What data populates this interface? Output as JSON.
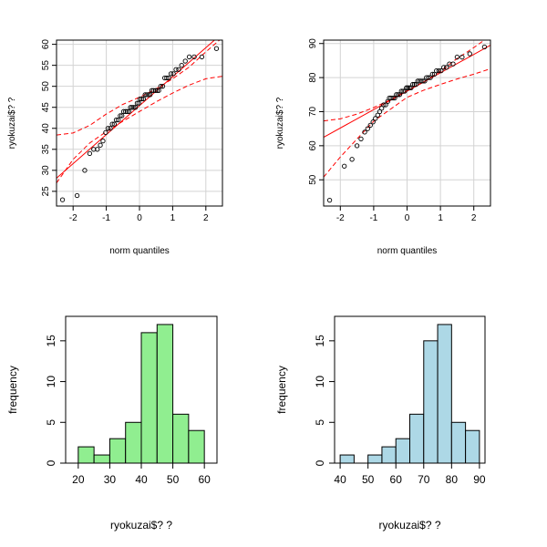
{
  "chart_data": [
    {
      "type": "scatter",
      "subtype": "qq-plot",
      "xlabel": "norm quantiles",
      "ylabel": "ryokuzai$? ?",
      "xlim": [
        -2.5,
        2.5
      ],
      "ylim": [
        21.5,
        61
      ],
      "xticks": [
        -2,
        -1,
        0,
        1,
        2
      ],
      "yticks": [
        25,
        30,
        35,
        40,
        45,
        50,
        55,
        60
      ],
      "grid": true,
      "points": {
        "x": [
          -2.32,
          -1.88,
          -1.65,
          -1.5,
          -1.38,
          -1.27,
          -1.18,
          -1.1,
          -1.02,
          -0.95,
          -0.88,
          -0.82,
          -0.76,
          -0.7,
          -0.64,
          -0.58,
          -0.53,
          -0.48,
          -0.42,
          -0.37,
          -0.32,
          -0.27,
          -0.22,
          -0.17,
          -0.12,
          -0.07,
          -0.02,
          0.02,
          0.07,
          0.12,
          0.17,
          0.22,
          0.27,
          0.32,
          0.37,
          0.42,
          0.48,
          0.53,
          0.58,
          0.64,
          0.7,
          0.76,
          0.82,
          0.88,
          0.95,
          1.02,
          1.1,
          1.18,
          1.27,
          1.38,
          1.5,
          1.65,
          1.88,
          2.32
        ],
        "y": [
          23,
          24,
          30,
          34,
          35,
          35,
          36,
          37,
          39,
          40,
          40,
          41,
          41,
          42,
          42,
          43,
          43,
          44,
          44,
          44,
          44,
          45,
          45,
          45,
          45,
          46,
          46,
          47,
          47,
          47,
          48,
          48,
          48,
          48,
          49,
          49,
          49,
          49,
          49,
          50,
          50,
          52,
          52,
          52,
          53,
          53,
          54,
          54,
          55,
          56,
          57,
          57,
          57,
          59
        ]
      },
      "reference_line": {
        "intercept": 45.4,
        "slope": 6.9
      },
      "envelope": {
        "x": [
          -2.5,
          -2.0,
          -1.5,
          -1.0,
          -0.5,
          0,
          0.5,
          1.0,
          1.5,
          2.0,
          2.5
        ],
        "lower": [
          27.0,
          32.6,
          36.5,
          39.2,
          41.7,
          44.0,
          46.3,
          48.4,
          50.3,
          51.8,
          52.4
        ],
        "upper": [
          38.4,
          38.9,
          40.7,
          43.4,
          45.7,
          47.4,
          49.4,
          51.8,
          54.6,
          58.2,
          61.6
        ]
      },
      "colors": {
        "points": "#000000",
        "reference_line": "#ff0000",
        "envelope": "#ff0000",
        "grid": "#d3d3d3"
      }
    },
    {
      "type": "scatter",
      "subtype": "qq-plot",
      "xlabel": "norm quantiles",
      "ylabel": "ryokuzai$? ?",
      "xlim": [
        -2.5,
        2.5
      ],
      "ylim": [
        42.3,
        91
      ],
      "xticks": [
        -2,
        -1,
        0,
        1,
        2
      ],
      "yticks": [
        50,
        60,
        70,
        80,
        90
      ],
      "grid": true,
      "points": {
        "x": [
          -2.32,
          -1.88,
          -1.65,
          -1.5,
          -1.38,
          -1.27,
          -1.18,
          -1.1,
          -1.02,
          -0.95,
          -0.88,
          -0.82,
          -0.76,
          -0.7,
          -0.64,
          -0.58,
          -0.53,
          -0.48,
          -0.42,
          -0.37,
          -0.32,
          -0.27,
          -0.22,
          -0.17,
          -0.12,
          -0.07,
          -0.02,
          0.02,
          0.07,
          0.12,
          0.17,
          0.22,
          0.27,
          0.32,
          0.37,
          0.42,
          0.48,
          0.53,
          0.58,
          0.64,
          0.7,
          0.76,
          0.82,
          0.88,
          0.95,
          1.02,
          1.1,
          1.18,
          1.27,
          1.38,
          1.5,
          1.65,
          1.88,
          2.32
        ],
        "y": [
          44,
          54,
          56,
          60,
          62,
          64,
          65,
          66,
          67,
          68,
          69,
          70,
          71,
          72,
          72,
          73,
          74,
          74,
          74,
          74,
          75,
          75,
          75,
          76,
          76,
          76,
          77,
          77,
          77,
          77,
          78,
          78,
          78,
          79,
          79,
          79,
          79,
          79,
          80,
          80,
          80,
          81,
          81,
          82,
          82,
          82,
          83,
          83,
          84,
          84,
          86,
          86,
          87,
          89
        ]
      },
      "reference_line": {
        "intercept": 76.0,
        "slope": 5.4
      },
      "envelope": {
        "x": [
          -2.5,
          -2.0,
          -1.5,
          -1.0,
          -0.5,
          0,
          0.5,
          1.0,
          1.5,
          2.0,
          2.5
        ],
        "lower": [
          50.8,
          56.7,
          62.0,
          67.2,
          70.7,
          74.2,
          76.3,
          78.0,
          79.6,
          81.0,
          82.6
        ],
        "upper": [
          67.3,
          67.9,
          69.3,
          71.2,
          73.5,
          76.2,
          78.7,
          81.9,
          85.6,
          88.8,
          92.3
        ]
      },
      "colors": {
        "points": "#000000",
        "reference_line": "#ff0000",
        "envelope": "#ff0000",
        "grid": "#d3d3d3"
      }
    },
    {
      "type": "bar",
      "subtype": "histogram",
      "xlabel": "ryokuzai$? ?",
      "ylabel": "frequency",
      "xlim": [
        16,
        64
      ],
      "ylim": [
        0,
        18
      ],
      "xticks": [
        20,
        30,
        40,
        50,
        60
      ],
      "yticks": [
        0,
        5,
        10,
        15
      ],
      "bins": [
        {
          "x0": 20,
          "x1": 25,
          "value": 2
        },
        {
          "x0": 25,
          "x1": 30,
          "value": 1
        },
        {
          "x0": 30,
          "x1": 35,
          "value": 3
        },
        {
          "x0": 35,
          "x1": 40,
          "value": 5
        },
        {
          "x0": 40,
          "x1": 45,
          "value": 16
        },
        {
          "x0": 45,
          "x1": 50,
          "value": 17
        },
        {
          "x0": 50,
          "x1": 55,
          "value": 6
        },
        {
          "x0": 55,
          "x1": 60,
          "value": 4
        }
      ],
      "colors": {
        "fill": "#90ee90",
        "edge": "#000000"
      }
    },
    {
      "type": "bar",
      "subtype": "histogram",
      "xlabel": "ryokuzai$? ?",
      "ylabel": "frequency",
      "xlim": [
        38,
        92
      ],
      "ylim": [
        0,
        18
      ],
      "xticks": [
        40,
        50,
        60,
        70,
        80,
        90
      ],
      "yticks": [
        0,
        5,
        10,
        15
      ],
      "bins": [
        {
          "x0": 40,
          "x1": 45,
          "value": 1
        },
        {
          "x0": 45,
          "x1": 50,
          "value": 0
        },
        {
          "x0": 50,
          "x1": 55,
          "value": 1
        },
        {
          "x0": 55,
          "x1": 60,
          "value": 2
        },
        {
          "x0": 60,
          "x1": 65,
          "value": 3
        },
        {
          "x0": 65,
          "x1": 70,
          "value": 6
        },
        {
          "x0": 70,
          "x1": 75,
          "value": 15
        },
        {
          "x0": 75,
          "x1": 80,
          "value": 17
        },
        {
          "x0": 80,
          "x1": 85,
          "value": 5
        },
        {
          "x0": 85,
          "x1": 90,
          "value": 4
        }
      ],
      "colors": {
        "fill": "#add8e6",
        "edge": "#000000"
      }
    }
  ]
}
